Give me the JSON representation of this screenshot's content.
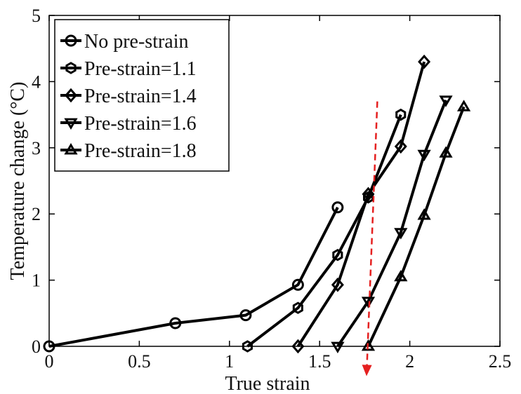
{
  "chart_data": {
    "type": "line",
    "xlabel": "True strain",
    "ylabel": "Temperature change (°C)",
    "xlim": [
      0,
      2.5
    ],
    "ylim": [
      0,
      5
    ],
    "x_ticks": [
      "0",
      "0.5",
      "1",
      "1.5",
      "2",
      "2.5"
    ],
    "y_ticks": [
      "0",
      "1",
      "2",
      "3",
      "4",
      "5"
    ],
    "grid": false,
    "legend_position": "top-left",
    "series": [
      {
        "name": "No pre-strain",
        "marker": "circle",
        "color": "#000000",
        "x": [
          0,
          0.7,
          1.09,
          1.38,
          1.6
        ],
        "y": [
          0,
          0.35,
          0.47,
          0.93,
          2.1
        ]
      },
      {
        "name": "Pre-strain=1.1",
        "marker": "hexagon",
        "color": "#000000",
        "x": [
          1.1,
          1.38,
          1.6,
          1.77,
          1.95
        ],
        "y": [
          0,
          0.58,
          1.38,
          2.25,
          3.5
        ]
      },
      {
        "name": "Pre-strain=1.4",
        "marker": "diamond",
        "color": "#000000",
        "x": [
          1.38,
          1.6,
          1.77,
          1.95,
          2.08
        ],
        "y": [
          0,
          0.93,
          2.3,
          3.02,
          4.3
        ]
      },
      {
        "name": "Pre-strain=1.6",
        "marker": "triangle-down",
        "color": "#000000",
        "x": [
          1.6,
          1.77,
          1.95,
          2.08,
          2.2
        ],
        "y": [
          0,
          0.68,
          1.72,
          2.9,
          3.72
        ]
      },
      {
        "name": "Pre-strain=1.8",
        "marker": "triangle-up",
        "color": "#000000",
        "x": [
          1.77,
          1.95,
          2.08,
          2.2,
          2.3
        ],
        "y": [
          0,
          1.05,
          1.98,
          2.92,
          3.62
        ]
      }
    ],
    "annotation": {
      "type": "dashed-arrow",
      "color": "#e52020",
      "from": [
        1.82,
        3.7
      ],
      "to": [
        1.76,
        -0.45
      ]
    }
  }
}
